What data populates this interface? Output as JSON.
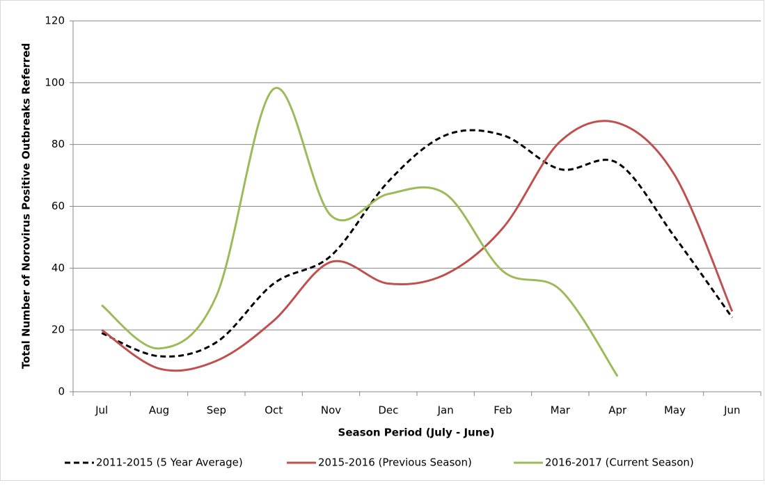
{
  "chart_data": {
    "type": "line",
    "x_label": "Season Period (July - June)",
    "y_label": "Total Number of Norovirus Positive Outbreaks Referred",
    "categories": [
      "Jul",
      "Aug",
      "Sep",
      "Oct",
      "Nov",
      "Dec",
      "Jan",
      "Feb",
      "Mar",
      "Apr",
      "May",
      "Jun"
    ],
    "ylim": [
      0,
      120
    ],
    "yticks": [
      0,
      20,
      40,
      60,
      80,
      100,
      120
    ],
    "grid": true,
    "legend": "bottom",
    "series": [
      {
        "name": "2011-2015 (5 Year Average)",
        "color": "#000000",
        "dashed": true,
        "values": [
          19,
          11.5,
          16,
          35,
          44,
          68,
          83,
          83,
          72,
          74,
          50,
          24
        ]
      },
      {
        "name": "2015-2016 (Previous Season)",
        "color": "#c0504d",
        "dashed": false,
        "values": [
          20,
          7.5,
          10,
          23,
          42,
          35,
          38,
          53,
          81,
          87,
          70,
          26
        ]
      },
      {
        "name": "2016-2017 (Current Season)",
        "color": "#9bbb59",
        "dashed": false,
        "values": [
          28,
          14,
          31,
          98,
          57,
          64,
          64,
          39,
          33,
          5,
          null,
          null
        ]
      }
    ]
  }
}
